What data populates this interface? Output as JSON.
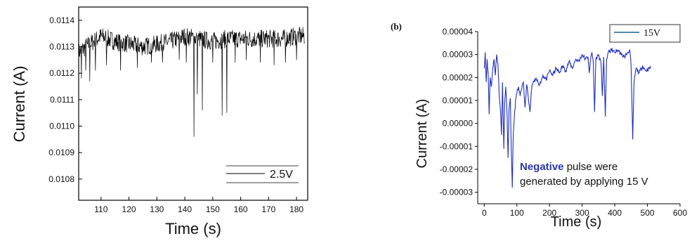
{
  "chart_data": [
    {
      "type": "line",
      "panel_label": "",
      "xlabel": "Time (s)",
      "ylabel": "Current (A)",
      "xlim": [
        102,
        184
      ],
      "ylim": [
        0.01072,
        0.01145
      ],
      "x_ticks": [
        "110",
        "120",
        "130",
        "140",
        "150",
        "160",
        "170",
        "180"
      ],
      "x_tick_values": [
        110,
        120,
        130,
        140,
        150,
        160,
        170,
        180
      ],
      "y_ticks": [
        "0.0108",
        "0.0109",
        "0.0110",
        "0.0111",
        "0.0112",
        "0.0113",
        "0.0114"
      ],
      "y_tick_values": [
        0.0108,
        0.0109,
        0.011,
        0.0111,
        0.0112,
        0.0113,
        0.0114
      ],
      "grid": false,
      "legend_position": "bottom-right",
      "series": [
        {
          "name": "2.5V",
          "color": "#000000",
          "baseline": [
            [
              102,
              0.01128
            ],
            [
              106,
              0.01131
            ],
            [
              110,
              0.01134
            ],
            [
              115,
              0.01132
            ],
            [
              120,
              0.01131
            ],
            [
              125,
              0.0113
            ],
            [
              130,
              0.01131
            ],
            [
              135,
              0.01132
            ],
            [
              140,
              0.01134
            ],
            [
              145,
              0.01133
            ],
            [
              150,
              0.01132
            ],
            [
              155,
              0.01133
            ],
            [
              160,
              0.01133
            ],
            [
              165,
              0.01133
            ],
            [
              170,
              0.01133
            ],
            [
              175,
              0.01133
            ],
            [
              180,
              0.01134
            ],
            [
              183,
              0.01134
            ]
          ],
          "noise_amplitude": 5e-05,
          "dips": [
            [
              103,
              0.01118
            ],
            [
              104.5,
              0.01121
            ],
            [
              106,
              0.01117
            ],
            [
              108,
              0.01121
            ],
            [
              112,
              0.01123
            ],
            [
              117,
              0.01121
            ],
            [
              123,
              0.01122
            ],
            [
              128,
              0.01124
            ],
            [
              132,
              0.01124
            ],
            [
              138,
              0.01125
            ],
            [
              140.5,
              0.01124
            ],
            [
              143.3,
              0.01096
            ],
            [
              144.5,
              0.01112
            ],
            [
              146.3,
              0.01106
            ],
            [
              150,
              0.01124
            ],
            [
              153.4,
              0.01104
            ],
            [
              155.0,
              0.01105
            ],
            [
              158,
              0.01124
            ],
            [
              162,
              0.01125
            ],
            [
              167,
              0.01124
            ],
            [
              172,
              0.01123
            ],
            [
              176,
              0.01124
            ],
            [
              180,
              0.01125
            ]
          ]
        }
      ]
    },
    {
      "type": "line",
      "panel_label": "(b)",
      "xlabel": "Time (s)",
      "ylabel": "Current (A)",
      "xlim": [
        -20,
        600
      ],
      "ylim": [
        -3.5e-05,
        4e-05
      ],
      "x_ticks": [
        "0",
        "100",
        "200",
        "300",
        "400",
        "500",
        "600"
      ],
      "x_tick_values": [
        0,
        100,
        200,
        300,
        400,
        500,
        600
      ],
      "y_ticks": [
        "0.00004",
        "0.00003",
        "0.00002",
        "0.00001",
        "0.00000",
        "-0.00001",
        "-0.00002",
        "-0.00003"
      ],
      "y_tick_values": [
        4e-05,
        3e-05,
        2e-05,
        1e-05,
        0.0,
        -1e-05,
        -2e-05,
        -3e-05
      ],
      "grid": false,
      "legend_position": "top-right",
      "annotation": {
        "bold_part": "Negative",
        "line1_rest": " pulse were",
        "line2": "generated by applying 15 V"
      },
      "series": [
        {
          "name": "15V",
          "color": "#1f2fbf",
          "points": [
            [
              0,
              2.4e-05
            ],
            [
              3,
              3.1e-05
            ],
            [
              6,
              1.8e-05
            ],
            [
              9,
              2.8e-05
            ],
            [
              12,
              2.2e-05
            ],
            [
              15,
              4e-06
            ],
            [
              18,
              2e-05
            ],
            [
              22,
              1.6e-05
            ],
            [
              26,
              2.4e-05
            ],
            [
              30,
              2.8e-05
            ],
            [
              34,
              2.1e-05
            ],
            [
              38,
              3e-05
            ],
            [
              42,
              2.6e-05
            ],
            [
              46,
              1.2e-05
            ],
            [
              50,
              5e-06
            ],
            [
              53,
              -5e-06
            ],
            [
              56,
              1.8e-05
            ],
            [
              60,
              -1.1e-05
            ],
            [
              63,
              1e-05
            ],
            [
              66,
              1.6e-05
            ],
            [
              70,
              4e-06
            ],
            [
              73,
              -1.5e-05
            ],
            [
              76,
              6e-06
            ],
            [
              80,
              1.1e-05
            ],
            [
              83,
              -1.2e-05
            ],
            [
              86,
              -2.8e-05
            ],
            [
              89,
              -4e-06
            ],
            [
              92,
              2e-06
            ],
            [
              96,
              1e-05
            ],
            [
              100,
              1.3e-05
            ],
            [
              105,
              1.6e-05
            ],
            [
              110,
              1.2e-05
            ],
            [
              115,
              1.5e-05
            ],
            [
              120,
              1.8e-05
            ],
            [
              125,
              7e-06
            ],
            [
              130,
              1.7e-05
            ],
            [
              135,
              1.1e-05
            ],
            [
              140,
              5e-06
            ],
            [
              145,
              1.5e-05
            ],
            [
              150,
              1.8e-05
            ],
            [
              160,
              1.9e-05
            ],
            [
              170,
              1.7e-05
            ],
            [
              180,
              2.1e-05
            ],
            [
              190,
              1.9e-05
            ],
            [
              200,
              2.3e-05
            ],
            [
              210,
              2.1e-05
            ],
            [
              220,
              2.4e-05
            ],
            [
              230,
              2.2e-05
            ],
            [
              240,
              2.5e-05
            ],
            [
              250,
              2.3e-05
            ],
            [
              260,
              2.7e-05
            ],
            [
              270,
              2.4e-05
            ],
            [
              280,
              2.8e-05
            ],
            [
              290,
              2.7e-05
            ],
            [
              300,
              3e-05
            ],
            [
              310,
              2.8e-05
            ],
            [
              318,
              2.9e-05
            ],
            [
              322,
              2.2e-05
            ],
            [
              326,
              2.8e-05
            ],
            [
              330,
              3.1e-05
            ],
            [
              334,
              2.7e-05
            ],
            [
              338,
              5e-06
            ],
            [
              342,
              2.8e-05
            ],
            [
              350,
              3e-05
            ],
            [
              358,
              2.6e-05
            ],
            [
              362,
              1.2e-05
            ],
            [
              366,
              2.9e-05
            ],
            [
              371,
              3e-06
            ],
            [
              375,
              2.8e-05
            ],
            [
              380,
              3.1e-05
            ],
            [
              390,
              3.2e-05
            ],
            [
              400,
              3.1e-05
            ],
            [
              410,
              3.2e-05
            ],
            [
              420,
              3e-05
            ],
            [
              430,
              2.9e-05
            ],
            [
              440,
              3.1e-05
            ],
            [
              446,
              3.2e-05
            ],
            [
              450,
              2.5e-05
            ],
            [
              455,
              -7e-06
            ],
            [
              459,
              1.8e-05
            ],
            [
              465,
              2.4e-05
            ],
            [
              475,
              2.2e-05
            ],
            [
              485,
              2.5e-05
            ],
            [
              495,
              2.3e-05
            ],
            [
              505,
              2.4e-05
            ],
            [
              510,
              2.4e-05
            ]
          ]
        }
      ]
    }
  ]
}
